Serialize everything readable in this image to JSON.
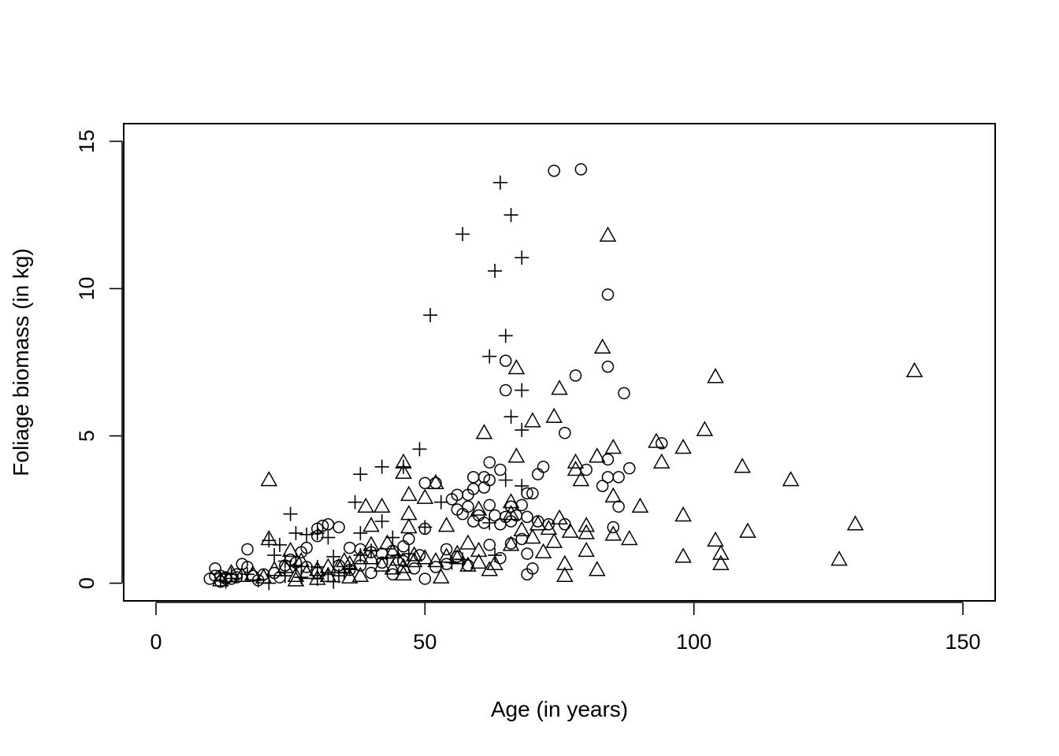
{
  "chart_data": {
    "type": "scatter",
    "title": "",
    "xlabel": "Age (in years)",
    "ylabel": "Foliage biomass (in kg)",
    "xlim": [
      -6,
      156
    ],
    "ylim": [
      -0.6,
      15.6
    ],
    "x_ticks": [
      0,
      50,
      100,
      150
    ],
    "y_ticks": [
      0,
      5,
      10,
      15
    ],
    "x_tick_labels": [
      "0",
      "50",
      "100",
      "150"
    ],
    "y_tick_labels": [
      "0",
      "5",
      "10",
      "15"
    ],
    "grid": false,
    "legend": "none",
    "series": [
      {
        "marker": "circle",
        "points": [
          [
            74,
            14.0
          ],
          [
            79,
            14.05
          ],
          [
            84,
            9.8
          ],
          [
            84,
            7.35
          ],
          [
            78,
            7.05
          ],
          [
            65,
            7.55
          ],
          [
            65,
            6.55
          ],
          [
            87,
            6.45
          ],
          [
            76,
            5.1
          ],
          [
            94,
            4.75
          ],
          [
            84,
            4.2
          ],
          [
            62,
            4.1
          ],
          [
            72,
            3.95
          ],
          [
            64,
            3.85
          ],
          [
            80,
            3.85
          ],
          [
            88,
            3.9
          ],
          [
            59,
            3.6
          ],
          [
            61,
            3.6
          ],
          [
            62,
            3.5
          ],
          [
            71,
            3.7
          ],
          [
            84,
            3.6
          ],
          [
            86,
            3.6
          ],
          [
            50,
            3.4
          ],
          [
            52,
            3.4
          ],
          [
            83,
            3.3
          ],
          [
            61,
            3.25
          ],
          [
            59,
            3.2
          ],
          [
            56,
            3.0
          ],
          [
            58,
            3.0
          ],
          [
            69,
            3.05
          ],
          [
            70,
            3.05
          ],
          [
            55,
            2.85
          ],
          [
            58,
            2.6
          ],
          [
            62,
            2.65
          ],
          [
            66,
            2.6
          ],
          [
            68,
            2.65
          ],
          [
            86,
            2.6
          ],
          [
            56,
            2.5
          ],
          [
            57,
            2.35
          ],
          [
            60,
            2.3
          ],
          [
            63,
            2.3
          ],
          [
            65,
            2.25
          ],
          [
            67,
            2.3
          ],
          [
            69,
            2.25
          ],
          [
            59,
            2.1
          ],
          [
            61,
            2.05
          ],
          [
            64,
            2.0
          ],
          [
            66,
            2.1
          ],
          [
            71,
            2.1
          ],
          [
            73,
            2.0
          ],
          [
            76,
            2.0
          ],
          [
            85,
            1.9
          ],
          [
            34,
            1.9
          ],
          [
            30,
            1.85
          ],
          [
            31,
            1.95
          ],
          [
            32,
            2.0
          ],
          [
            30,
            1.6
          ],
          [
            28,
            1.2
          ],
          [
            17,
            1.15
          ],
          [
            36,
            1.2
          ],
          [
            38,
            1.15
          ],
          [
            40,
            1.05
          ],
          [
            42,
            1.0
          ],
          [
            44,
            1.1
          ],
          [
            46,
            1.25
          ],
          [
            47,
            1.5
          ],
          [
            50,
            1.85
          ],
          [
            54,
            1.15
          ],
          [
            56,
            0.9
          ],
          [
            58,
            0.6
          ],
          [
            62,
            1.3
          ],
          [
            64,
            0.85
          ],
          [
            66,
            1.35
          ],
          [
            68,
            1.5
          ],
          [
            69,
            1.0
          ],
          [
            70,
            0.5
          ],
          [
            69,
            0.3
          ],
          [
            54,
            0.65
          ],
          [
            52,
            0.55
          ],
          [
            48,
            0.5
          ],
          [
            50,
            0.15
          ],
          [
            44,
            0.3
          ],
          [
            40,
            0.35
          ],
          [
            36,
            0.45
          ],
          [
            34,
            0.6
          ],
          [
            30,
            0.35
          ],
          [
            28,
            0.55
          ],
          [
            26,
            0.7
          ],
          [
            24,
            0.6
          ],
          [
            22,
            0.35
          ],
          [
            20,
            0.3
          ],
          [
            18,
            0.25
          ],
          [
            17,
            0.55
          ],
          [
            16,
            0.65
          ],
          [
            15,
            0.3
          ],
          [
            14,
            0.15
          ],
          [
            13,
            0.2
          ],
          [
            12,
            0.25
          ],
          [
            11,
            0.5
          ],
          [
            11,
            0.25
          ],
          [
            10,
            0.15
          ],
          [
            12,
            0.05
          ],
          [
            13,
            0.15
          ],
          [
            15,
            0.2
          ],
          [
            19,
            0.1
          ],
          [
            23,
            0.2
          ],
          [
            25,
            0.8
          ],
          [
            27,
            1.05
          ],
          [
            38,
            0.6
          ],
          [
            42,
            0.7
          ],
          [
            46,
            0.75
          ],
          [
            49,
            0.95
          ]
        ]
      },
      {
        "marker": "plus",
        "points": [
          [
            64,
            13.6
          ],
          [
            66,
            12.5
          ],
          [
            57,
            11.85
          ],
          [
            68,
            11.05
          ],
          [
            63,
            10.6
          ],
          [
            51,
            9.1
          ],
          [
            65,
            8.4
          ],
          [
            62,
            7.7
          ],
          [
            68,
            6.55
          ],
          [
            66,
            5.65
          ],
          [
            68,
            5.2
          ],
          [
            49,
            4.55
          ],
          [
            46,
            3.95
          ],
          [
            42,
            3.95
          ],
          [
            38,
            3.7
          ],
          [
            65,
            3.5
          ],
          [
            68,
            3.3
          ],
          [
            37,
            2.75
          ],
          [
            53,
            2.75
          ],
          [
            25,
            2.35
          ],
          [
            38,
            1.7
          ],
          [
            42,
            2.1
          ],
          [
            44,
            1.55
          ],
          [
            50,
            1.9
          ],
          [
            30,
            1.7
          ],
          [
            32,
            1.55
          ],
          [
            28,
            1.65
          ],
          [
            26,
            1.7
          ],
          [
            21,
            1.45
          ],
          [
            23,
            1.3
          ],
          [
            22,
            0.95
          ],
          [
            24,
            0.75
          ],
          [
            26,
            0.6
          ],
          [
            30,
            0.55
          ],
          [
            33,
            0.9
          ],
          [
            32,
            0.3
          ],
          [
            34,
            0.25
          ],
          [
            35,
            0.35
          ],
          [
            36,
            0.5
          ],
          [
            38,
            0.95
          ],
          [
            40,
            1.1
          ],
          [
            43,
            0.85
          ],
          [
            45,
            0.95
          ],
          [
            47,
            1.0
          ],
          [
            33,
            0.05
          ],
          [
            30,
            0.15
          ],
          [
            27,
            0.2
          ],
          [
            24,
            0.25
          ],
          [
            21,
            0.0
          ],
          [
            19,
            0.1
          ],
          [
            17,
            0.3
          ],
          [
            14,
            0.3
          ],
          [
            12,
            0.1
          ],
          [
            13,
            0.05
          ],
          [
            63,
            0.95
          ],
          [
            57,
            0.8
          ],
          [
            55,
            0.7
          ],
          [
            62,
            2.05
          ]
        ]
      },
      {
        "marker": "triangle",
        "points": [
          [
            84,
            11.8
          ],
          [
            83,
            8.0
          ],
          [
            67,
            7.3
          ],
          [
            104,
            7.0
          ],
          [
            141,
            7.2
          ],
          [
            75,
            6.6
          ],
          [
            70,
            5.5
          ],
          [
            74,
            5.65
          ],
          [
            61,
            5.1
          ],
          [
            102,
            5.2
          ],
          [
            93,
            4.8
          ],
          [
            98,
            4.6
          ],
          [
            85,
            4.6
          ],
          [
            67,
            4.3
          ],
          [
            82,
            4.3
          ],
          [
            94,
            4.1
          ],
          [
            78,
            4.1
          ],
          [
            46,
            4.1
          ],
          [
            46,
            3.75
          ],
          [
            109,
            3.95
          ],
          [
            78,
            3.85
          ],
          [
            79,
            3.5
          ],
          [
            21,
            3.5
          ],
          [
            118,
            3.5
          ],
          [
            52,
            3.4
          ],
          [
            47,
            3.0
          ],
          [
            50,
            2.9
          ],
          [
            85,
            2.95
          ],
          [
            90,
            2.6
          ],
          [
            39,
            2.6
          ],
          [
            42,
            2.6
          ],
          [
            66,
            2.75
          ],
          [
            60,
            2.5
          ],
          [
            47,
            2.35
          ],
          [
            98,
            2.3
          ],
          [
            66,
            2.35
          ],
          [
            75,
            2.2
          ],
          [
            54,
            1.95
          ],
          [
            47,
            1.9
          ],
          [
            40,
            1.95
          ],
          [
            71,
            2.0
          ],
          [
            73,
            1.85
          ],
          [
            68,
            1.8
          ],
          [
            77,
            1.75
          ],
          [
            80,
            1.7
          ],
          [
            80,
            1.95
          ],
          [
            85,
            1.65
          ],
          [
            88,
            1.5
          ],
          [
            110,
            1.75
          ],
          [
            130,
            2.0
          ],
          [
            104,
            1.45
          ],
          [
            105,
            1.0
          ],
          [
            105,
            0.65
          ],
          [
            98,
            0.9
          ],
          [
            127,
            0.8
          ],
          [
            80,
            1.1
          ],
          [
            82,
            0.45
          ],
          [
            76,
            0.65
          ],
          [
            76,
            0.25
          ],
          [
            72,
            1.05
          ],
          [
            74,
            1.4
          ],
          [
            70,
            1.55
          ],
          [
            66,
            1.3
          ],
          [
            63,
            0.65
          ],
          [
            62,
            0.45
          ],
          [
            60,
            0.7
          ],
          [
            58,
            1.35
          ],
          [
            60,
            1.1
          ],
          [
            56,
            1.0
          ],
          [
            54,
            0.9
          ],
          [
            52,
            0.75
          ],
          [
            53,
            0.2
          ],
          [
            50,
            0.85
          ],
          [
            48,
            0.75
          ],
          [
            46,
            0.55
          ],
          [
            46,
            0.3
          ],
          [
            44,
            0.5
          ],
          [
            42,
            0.6
          ],
          [
            40,
            0.85
          ],
          [
            40,
            1.3
          ],
          [
            43,
            1.35
          ],
          [
            44,
            1.05
          ],
          [
            38,
            0.85
          ],
          [
            36,
            0.65
          ],
          [
            34,
            0.55
          ],
          [
            32,
            0.55
          ],
          [
            30,
            0.45
          ],
          [
            28,
            0.35
          ],
          [
            26,
            0.25
          ],
          [
            24,
            0.55
          ],
          [
            22,
            0.45
          ],
          [
            20,
            0.2
          ],
          [
            18,
            0.3
          ],
          [
            16,
            0.25
          ],
          [
            14,
            0.35
          ],
          [
            21,
            1.5
          ],
          [
            25,
            1.1
          ],
          [
            27,
            0.75
          ],
          [
            36,
            0.2
          ],
          [
            38,
            0.25
          ],
          [
            32,
            0.25
          ],
          [
            30,
            0.15
          ],
          [
            26,
            0.1
          ],
          [
            12,
            0.1
          ],
          [
            48,
            0.95
          ],
          [
            56,
            0.85
          ],
          [
            58,
            0.6
          ],
          [
            35,
            0.75
          ],
          [
            45,
            0.8
          ]
        ]
      }
    ]
  }
}
